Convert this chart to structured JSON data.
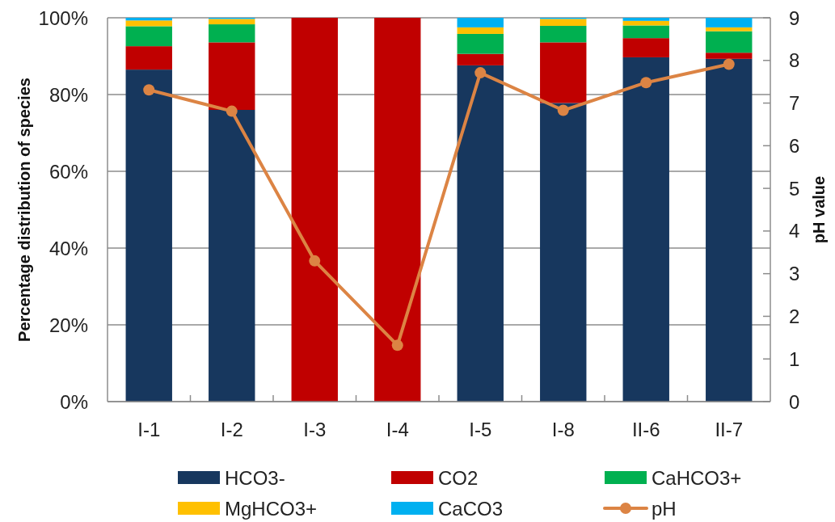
{
  "chart_data": {
    "type": "bar",
    "stacked": true,
    "categories": [
      "I-1",
      "I-2",
      "I-3",
      "I-4",
      "I-5",
      "I-8",
      "II-6",
      "II-7"
    ],
    "series": [
      {
        "name": "HCO3-",
        "color": "#17375e",
        "values": [
          86.5,
          76.0,
          null,
          null,
          87.6,
          77.8,
          89.7,
          89.3
        ]
      },
      {
        "name": "CO2",
        "color": "#c00000",
        "values": [
          6.1,
          17.6,
          100,
          100,
          3.0,
          15.8,
          5.0,
          1.6
        ]
      },
      {
        "name": "CaHCO3+",
        "color": "#00b050",
        "values": [
          5.2,
          4.7,
          null,
          null,
          5.2,
          4.3,
          3.3,
          5.6
        ]
      },
      {
        "name": "MgHCO3+",
        "color": "#ffc000",
        "values": [
          1.5,
          1.4,
          null,
          null,
          1.7,
          1.8,
          1.2,
          1.0
        ]
      },
      {
        "name": "CaCO3",
        "color": "#00b0f0",
        "values": [
          0.7,
          0.3,
          null,
          null,
          2.5,
          0.3,
          0.8,
          2.5
        ]
      },
      {
        "name": "pH",
        "type": "line",
        "axis": "y2",
        "color": "#dc8444",
        "marker": "circle",
        "line_style": "solid",
        "values": [
          7.31,
          6.81,
          3.3,
          1.32,
          7.71,
          6.83,
          7.48,
          7.91
        ]
      }
    ],
    "ylabel": "Percentage distribution of species",
    "y2label": "pH value",
    "ylim": [
      0,
      100
    ],
    "yticks": [
      {
        "value": 0,
        "label": "0%"
      },
      {
        "value": 20,
        "label": "20%"
      },
      {
        "value": 40,
        "label": "40%"
      },
      {
        "value": 60,
        "label": "60%"
      },
      {
        "value": 80,
        "label": "80%"
      },
      {
        "value": 100,
        "label": "100%"
      }
    ],
    "y2lim": [
      0,
      9
    ],
    "y2ticks": [
      0,
      1,
      2,
      3,
      4,
      5,
      6,
      7,
      8,
      9
    ],
    "grid": "y",
    "legend": "bottom"
  }
}
